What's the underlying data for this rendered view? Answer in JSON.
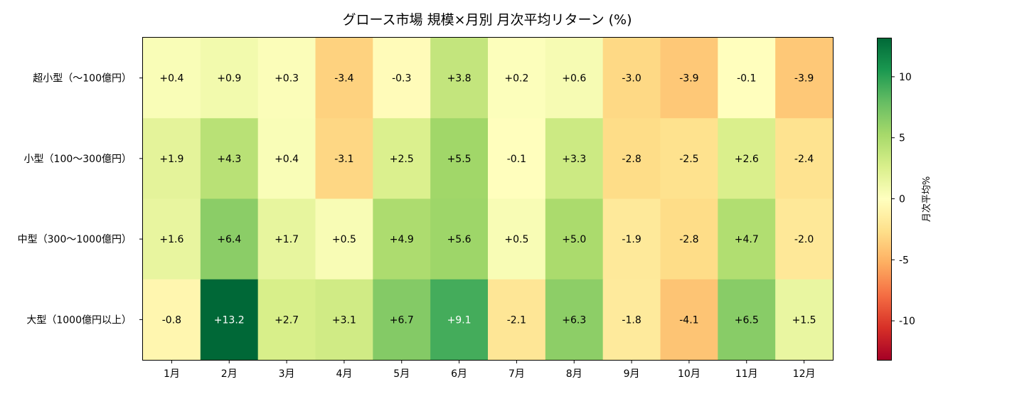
{
  "chart_data": {
    "type": "heatmap",
    "title": "グロース市場 規模×月別 月次平均リターン (%)",
    "rows": [
      "超小型（〜100億円）",
      "小型（100〜300億円）",
      "中型（300〜1000億円）",
      "大型（1000億円以上）"
    ],
    "columns": [
      "1月",
      "2月",
      "3月",
      "4月",
      "5月",
      "6月",
      "7月",
      "8月",
      "9月",
      "10月",
      "11月",
      "12月"
    ],
    "values": [
      [
        0.4,
        0.9,
        0.3,
        -3.4,
        -0.3,
        3.8,
        0.2,
        0.6,
        -3.0,
        -3.9,
        -0.1,
        -3.9
      ],
      [
        1.9,
        4.3,
        0.4,
        -3.1,
        2.5,
        5.5,
        -0.1,
        3.3,
        -2.8,
        -2.5,
        2.6,
        -2.4
      ],
      [
        1.6,
        6.4,
        1.7,
        0.5,
        4.9,
        5.6,
        0.5,
        5.0,
        -1.9,
        -2.8,
        4.7,
        -2.0
      ],
      [
        -0.8,
        13.2,
        2.7,
        3.1,
        6.7,
        9.1,
        -2.1,
        6.3,
        -1.8,
        -4.1,
        6.5,
        1.5
      ]
    ],
    "cell_labels": [
      [
        "+0.4",
        "+0.9",
        "+0.3",
        "-3.4",
        "-0.3",
        "+3.8",
        "+0.2",
        "+0.6",
        "-3.0",
        "-3.9",
        "-0.1",
        "-3.9"
      ],
      [
        "+1.9",
        "+4.3",
        "+0.4",
        "-3.1",
        "+2.5",
        "+5.5",
        "-0.1",
        "+3.3",
        "-2.8",
        "-2.5",
        "+2.6",
        "-2.4"
      ],
      [
        "+1.6",
        "+6.4",
        "+1.7",
        "+0.5",
        "+4.9",
        "+5.6",
        "+0.5",
        "+5.0",
        "-1.9",
        "-2.8",
        "+4.7",
        "-2.0"
      ],
      [
        "-0.8",
        "+13.2",
        "+2.7",
        "+3.1",
        "+6.7",
        "+9.1",
        "-2.1",
        "+6.3",
        "-1.8",
        "-4.1",
        "+6.5",
        "+1.5"
      ]
    ],
    "colormap": "RdYlGn",
    "vmin": -13.2,
    "vmax": 13.2,
    "colorbar": {
      "label": "月次平均%",
      "ticks": [
        10,
        5,
        0,
        -5,
        -10
      ],
      "tick_labels": [
        "10",
        "5",
        "0",
        "-5",
        "-10"
      ]
    }
  }
}
